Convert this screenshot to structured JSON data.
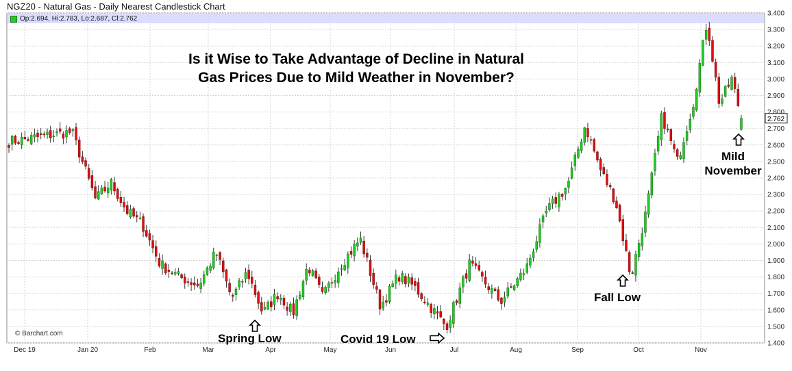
{
  "header": {
    "title": "NGZ20 - Natural Gas - Daily Nearest Candlestick Chart",
    "ohlc": "Op:2.694, Hi:2.783, Lo:2.687, Cl:2.762"
  },
  "headline": {
    "line1": "Is it Wise to Take Advantage of Decline in Natural",
    "line2": "Gas Prices Due to Mild Weather in November?"
  },
  "annotations": {
    "spring_low": "Spring Low",
    "covid_low": "Covid 19 Low",
    "fall_low": "Fall Low",
    "mild_line1": "Mild",
    "mild_line2": "November"
  },
  "credit": "© Barchart.com",
  "colors": {
    "up": "#22cc22",
    "down": "#dd1111",
    "highlight": "#dcdcff"
  },
  "chart_data": {
    "type": "candlestick",
    "yaxis_side": "right",
    "ylim": [
      1.4,
      3.4
    ],
    "ytick_labels": [
      "1.400",
      "1.500",
      "1.600",
      "1.700",
      "1.800",
      "1.900",
      "2.000",
      "2.100",
      "2.200",
      "2.300",
      "2.400",
      "2.500",
      "2.600",
      "2.700",
      "2.800",
      "2.900",
      "3.000",
      "3.100",
      "3.200",
      "3.300",
      "3.400"
    ],
    "xtick_labels": [
      "Dec 19",
      "Jan 20",
      "Feb",
      "Mar",
      "Apr",
      "May",
      "Jun",
      "Jul",
      "Aug",
      "Sep",
      "Oct",
      "Nov"
    ],
    "last_price_label": "2.762",
    "last_price": 2.762,
    "grid": true,
    "anchors": [
      [
        "Dec 19",
        2.62
      ],
      [
        "Dec 19",
        2.68
      ],
      [
        "Jan 20",
        2.27
      ],
      [
        "Jan 20",
        2.37
      ],
      [
        "Jan 20",
        2.2
      ],
      [
        "Jan 20",
        2.12
      ],
      [
        "Feb",
        1.88
      ],
      [
        "Feb",
        1.8
      ],
      [
        "Feb",
        1.75
      ],
      [
        "Mar",
        1.95
      ],
      [
        "Mar",
        1.67
      ],
      [
        "Mar",
        1.83
      ],
      [
        "Mar",
        1.58
      ],
      [
        "Apr",
        1.7
      ],
      [
        "Apr",
        1.58
      ],
      [
        "Apr",
        1.87
      ],
      [
        "Apr",
        1.68
      ],
      [
        "May",
        1.87
      ],
      [
        "May",
        2.03
      ],
      [
        "May",
        1.62
      ],
      [
        "Jun",
        1.81
      ],
      [
        "Jun",
        1.74
      ],
      [
        "Jun",
        1.62
      ],
      [
        "Jun",
        1.5
      ],
      [
        "Jul",
        1.88
      ],
      [
        "Jul",
        1.65
      ],
      [
        "Aug",
        1.85
      ],
      [
        "Aug",
        2.2
      ],
      [
        "Aug",
        2.35
      ],
      [
        "Sep",
        2.72
      ],
      [
        "Sep",
        2.45
      ],
      [
        "Sep",
        2.26
      ],
      [
        "Sep",
        1.8
      ],
      [
        "Oct",
        2.2
      ],
      [
        "Oct",
        2.78
      ],
      [
        "Oct",
        2.5
      ],
      [
        "Oct",
        2.85
      ],
      [
        "Nov",
        3.35
      ],
      [
        "Nov",
        2.85
      ],
      [
        "Nov",
        3.0
      ],
      [
        "Nov",
        2.7
      ],
      [
        "Nov",
        2.76
      ]
    ]
  }
}
